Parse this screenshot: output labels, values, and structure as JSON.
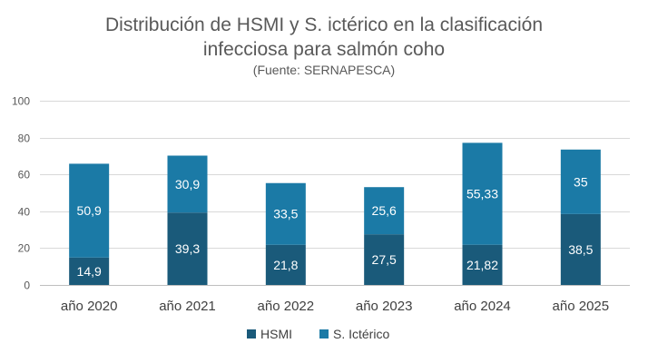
{
  "chart_data": {
    "type": "bar",
    "stacked": true,
    "title_lines": [
      "Distribución de HSMI y S. ictérico en la clasificación",
      "infecciosa para salmón coho"
    ],
    "subtitle": "(Fuente: SERNAPESCA)",
    "xlabel": "",
    "ylabel": "",
    "ylim": [
      0,
      100
    ],
    "yticks": [
      "0",
      "20",
      "40",
      "60",
      "80",
      "100"
    ],
    "ytick_values": [
      0,
      20,
      40,
      60,
      80,
      100
    ],
    "grid": true,
    "legend_position": "bottom",
    "categories": [
      "año 2020",
      "año 2021",
      "año 2022",
      "año 2023",
      "año 2024",
      "año 2025"
    ],
    "series": [
      {
        "name": "HSMI",
        "color": "#1a5a7a",
        "values": [
          14.9,
          39.3,
          21.8,
          27.5,
          21.82,
          38.5
        ],
        "labels": [
          "14,9",
          "39,3",
          "21,8",
          "27,5",
          "21,82",
          "38,5"
        ]
      },
      {
        "name": "S. Ictérico",
        "color": "#1b7aa6",
        "values": [
          50.9,
          30.9,
          33.5,
          25.6,
          55.33,
          35
        ],
        "labels": [
          "50,9",
          "30,9",
          "33,5",
          "25,6",
          "55,33",
          "35"
        ]
      }
    ]
  }
}
